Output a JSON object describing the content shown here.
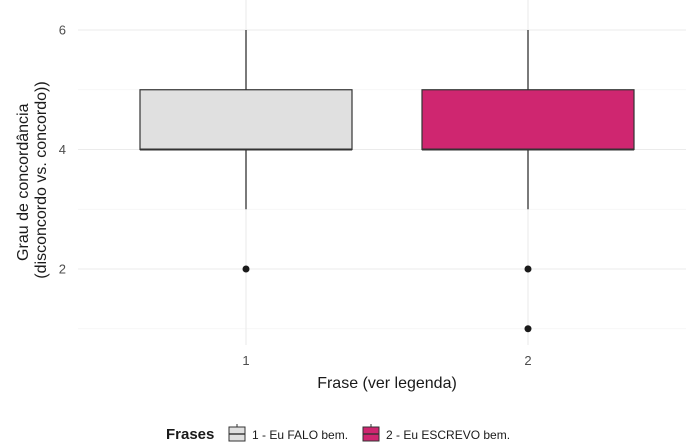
{
  "chart_data": {
    "type": "boxplot",
    "xlabel": "Frase (ver legenda)",
    "ylabel_lines": [
      "Grau de concordância",
      "(disconcordo vs. concordo))"
    ],
    "ylim": [
      0.8,
      6.0
    ],
    "yticks": [
      2,
      4,
      6
    ],
    "categories": [
      "1",
      "2"
    ],
    "grid": true,
    "legend_position": "bottom",
    "legend_title": "Frases",
    "series": [
      {
        "name": "1 - Eu FALO bem.",
        "category": "1",
        "color": "#e0e0e0",
        "whisker_low": 3,
        "q1": 4,
        "median": 4,
        "q3": 5,
        "whisker_high": 6,
        "outliers": [
          2
        ]
      },
      {
        "name": "2 - Eu ESCREVO bem.",
        "category": "2",
        "color": "#cf2670",
        "whisker_low": 3,
        "q1": 4,
        "median": 4,
        "q3": 5,
        "whisker_high": 6,
        "outliers": [
          2,
          1
        ]
      }
    ]
  }
}
